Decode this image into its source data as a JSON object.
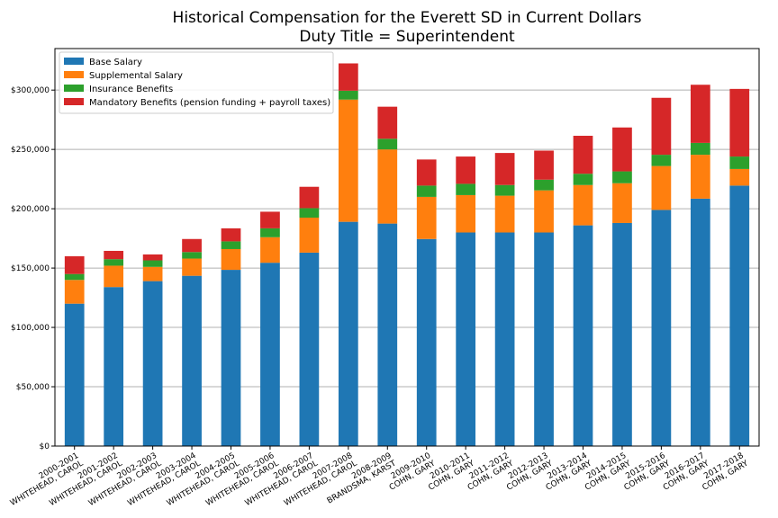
{
  "chart_data": {
    "type": "bar",
    "stacked": true,
    "title": "Historical Compensation for the Everett SD in Current Dollars",
    "subtitle": "Duty Title = Superintendent",
    "xlabel": "",
    "ylabel": "",
    "ylim": [
      0,
      335000
    ],
    "y_ticks": [
      "$0",
      "$50,000",
      "$100,000",
      "$150,000",
      "$200,000",
      "$250,000",
      "$300,000"
    ],
    "y_tick_values": [
      0,
      50000,
      100000,
      150000,
      200000,
      250000,
      300000
    ],
    "grid": "horizontal",
    "legend_position": "upper-left",
    "categories": [
      [
        "2000-2001",
        "WHITEHEAD, CAROL"
      ],
      [
        "2001-2002",
        "WHITEHEAD, CAROL"
      ],
      [
        "2002-2003",
        "WHITEHEAD, CAROL"
      ],
      [
        "2003-2004",
        "WHITEHEAD, CAROL"
      ],
      [
        "2004-2005",
        "WHITEHEAD, CAROL"
      ],
      [
        "2005-2006",
        "WHITEHEAD, CAROL"
      ],
      [
        "2006-2007",
        "WHITEHEAD, CAROL"
      ],
      [
        "2007-2008",
        "WHITEHEAD, CAROL"
      ],
      [
        "2008-2009",
        "BRANDSMA, KARST"
      ],
      [
        "2009-2010",
        "COHN, GARY"
      ],
      [
        "2010-2011",
        "COHN, GARY"
      ],
      [
        "2011-2012",
        "COHN, GARY"
      ],
      [
        "2012-2013",
        "COHN, GARY"
      ],
      [
        "2013-2014",
        "COHN, GARY"
      ],
      [
        "2014-2015",
        "COHN, GARY"
      ],
      [
        "2015-2016",
        "COHN, GARY"
      ],
      [
        "2016-2017",
        "COHN, GARY"
      ],
      [
        "2017-2018",
        "COHN, GARY"
      ]
    ],
    "series": [
      {
        "name": "Base Salary",
        "color": "#1f77b4",
        "values": [
          120000,
          134000,
          139000,
          143500,
          148500,
          154500,
          163000,
          189000,
          187500,
          174500,
          180000,
          180000,
          180000,
          186000,
          188000,
          199000,
          208500,
          219500
        ]
      },
      {
        "name": "Supplemental Salary",
        "color": "#ff7f0e",
        "values": [
          20000,
          18000,
          12000,
          14500,
          17500,
          21500,
          29500,
          103000,
          62500,
          35500,
          31500,
          31000,
          35500,
          34000,
          33500,
          37000,
          37000,
          14000
        ]
      },
      {
        "name": "Insurance Benefits",
        "color": "#2ca02c",
        "values": [
          5000,
          5500,
          5500,
          5500,
          6500,
          7500,
          8000,
          7500,
          9000,
          9500,
          9500,
          9000,
          9000,
          9500,
          10000,
          9500,
          10000,
          10500
        ]
      },
      {
        "name": "Mandatory Benefits (pension funding + payroll taxes)",
        "color": "#d62728",
        "values": [
          15000,
          7000,
          5000,
          11000,
          11000,
          14000,
          18000,
          23000,
          27000,
          22000,
          23000,
          27000,
          24500,
          32000,
          37000,
          48000,
          49000,
          57000
        ]
      }
    ]
  }
}
